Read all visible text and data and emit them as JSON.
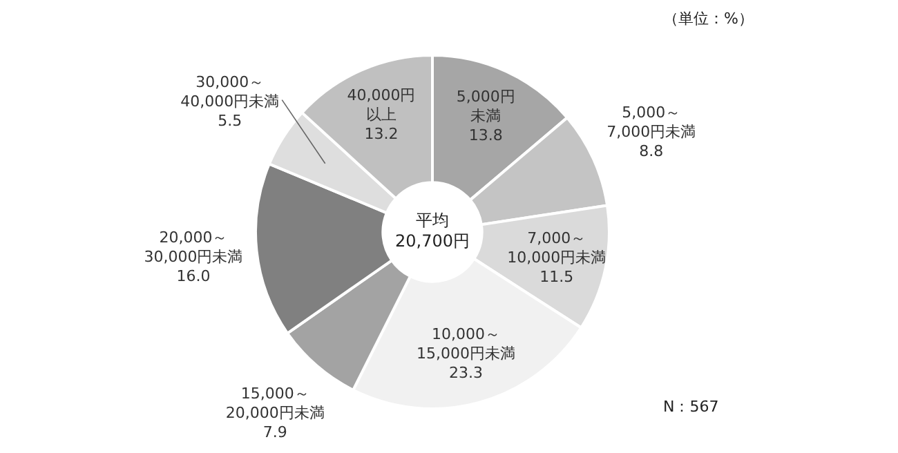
{
  "chart_data": {
    "type": "donut",
    "categories": [
      "5,000円未満",
      "5,000～7,000円未満",
      "7,000～10,000円未満",
      "10,000～15,000円未満",
      "15,000～20,000円未満",
      "20,000～30,000円未満",
      "30,000～40,000円未満",
      "40,000円以上"
    ],
    "values": [
      13.8,
      8.8,
      11.5,
      23.3,
      7.9,
      16.0,
      5.5,
      13.2
    ],
    "value_labels": [
      "13.8",
      "8.8",
      "11.5",
      "23.3",
      "7.9",
      "16.0",
      "5.5",
      "13.2"
    ],
    "colors": [
      "#a6a6a6",
      "#c4c4c4",
      "#dadada",
      "#f1f1f1",
      "#a3a3a3",
      "#808080",
      "#dedede",
      "#c0c0c0"
    ],
    "annotations": [
      "平均\n20,700円",
      "（単位：%）",
      "N：567"
    ],
    "legend": false
  }
}
